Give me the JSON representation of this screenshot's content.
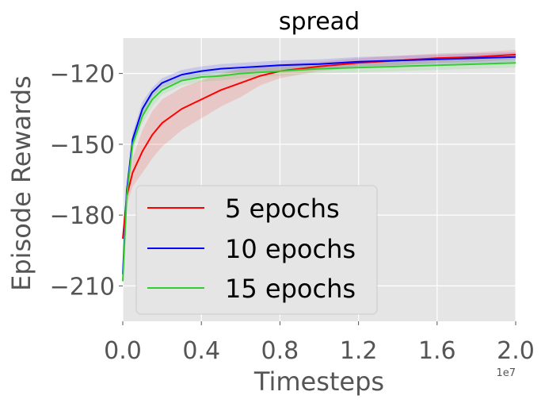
{
  "chart_data": {
    "type": "line",
    "title": "spread",
    "xlabel": "Timesteps",
    "ylabel": "Episode Rewards",
    "x_offset_label": "1e7",
    "xlim": [
      0.0,
      2.0
    ],
    "ylim": [
      -225,
      -105
    ],
    "xticks": [
      0.0,
      0.4,
      0.8,
      1.2,
      1.6,
      2.0
    ],
    "xtick_labels": [
      "0.0",
      "0.4",
      "0.8",
      "1.2",
      "1.6",
      "2.0"
    ],
    "yticks": [
      -120,
      -150,
      -180,
      -210
    ],
    "ytick_labels": [
      "−120",
      "−150",
      "−180",
      "−210"
    ],
    "grid": true,
    "legend_position": "lower-left",
    "x": [
      0.0,
      0.02,
      0.05,
      0.1,
      0.15,
      0.2,
      0.3,
      0.4,
      0.5,
      0.6,
      0.7,
      0.8,
      1.0,
      1.2,
      1.4,
      1.6,
      1.8,
      2.0
    ],
    "series": [
      {
        "name": "5 epochs",
        "color": "#ff0000",
        "values": [
          -190,
          -172,
          -162,
          -153,
          -146,
          -141,
          -135,
          -131,
          -127,
          -124,
          -121,
          -119,
          -117,
          -115.5,
          -114.5,
          -113.5,
          -113,
          -112
        ],
        "spread": [
          2,
          4,
          6,
          9,
          10,
          10,
          9,
          8,
          7,
          6,
          4,
          3,
          2,
          2,
          2,
          2,
          2,
          2
        ]
      },
      {
        "name": "10 epochs",
        "color": "#0000ff",
        "values": [
          -205,
          -170,
          -148,
          -135,
          -128,
          -124,
          -120.5,
          -119,
          -118,
          -117.5,
          -117,
          -116.5,
          -116,
          -115,
          -114.5,
          -114,
          -113.5,
          -113
        ],
        "spread": [
          2,
          3,
          3,
          3,
          2,
          2,
          2,
          2,
          2,
          2,
          2,
          2,
          2,
          2,
          2,
          2,
          2,
          2
        ]
      },
      {
        "name": "15 epochs",
        "color": "#32cd32",
        "values": [
          -208,
          -172,
          -150,
          -138,
          -131,
          -127,
          -123,
          -121.5,
          -121,
          -120,
          -119.5,
          -119,
          -118,
          -117.5,
          -117,
          -116.5,
          -116,
          -115.5
        ],
        "spread": [
          2,
          3,
          3,
          3,
          3,
          2,
          2,
          2,
          2,
          2,
          2,
          2,
          2,
          2,
          2,
          2,
          2,
          2
        ]
      }
    ]
  }
}
